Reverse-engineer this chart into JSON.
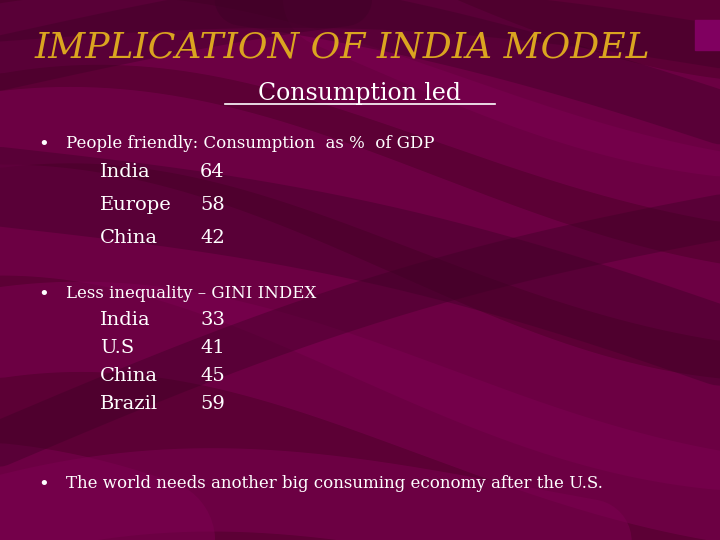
{
  "title": "IMPLICATION OF INDIA MODEL",
  "title_color": "#DAA520",
  "title_fontsize": 26,
  "subtitle": "Consumption led",
  "subtitle_color": "#FFFFFF",
  "subtitle_fontsize": 17,
  "bg_color": "#5C0035",
  "stripe_color": "#7B0050",
  "text_color": "#FFFFFF",
  "bullet1_header": "People friendly: Consumption  as %  of GDP",
  "bullet1_data": [
    [
      "India",
      "64"
    ],
    [
      "Europe",
      "58"
    ],
    [
      "China",
      "42"
    ]
  ],
  "bullet2_header": "Less inequality – GINI INDEX",
  "bullet2_data": [
    [
      "India",
      "33"
    ],
    [
      "U.S",
      "41"
    ],
    [
      "China",
      "45"
    ],
    [
      "Brazil",
      "59"
    ]
  ],
  "bullet3": "The world needs another big consuming economy after the U.S.",
  "header_fontsize": 12,
  "data_fontsize": 14,
  "bullet_fontsize": 13
}
